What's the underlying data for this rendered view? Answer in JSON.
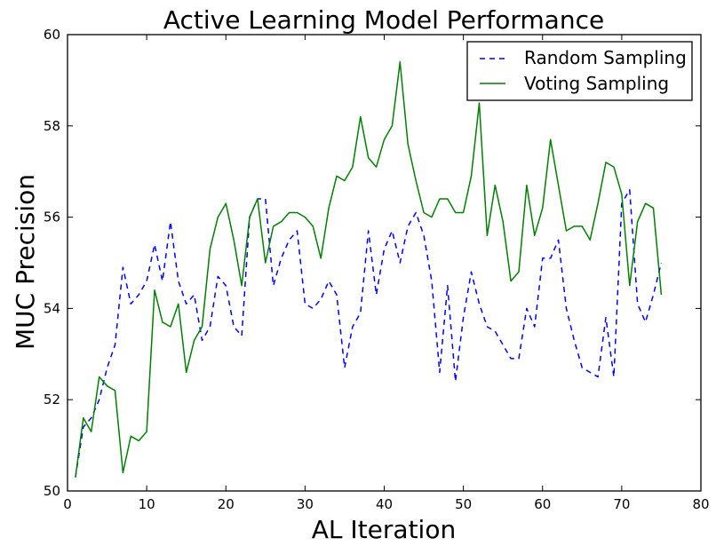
{
  "chart_data": {
    "type": "line",
    "title": "Active Learning Model Performance",
    "xlabel": "AL Iteration",
    "ylabel": "MUC Precision",
    "xlim": [
      0,
      80
    ],
    "ylim": [
      50,
      60
    ],
    "xticks": [
      0,
      10,
      20,
      30,
      40,
      50,
      60,
      70,
      80
    ],
    "yticks": [
      50,
      52,
      54,
      56,
      58,
      60
    ],
    "grid": false,
    "legend": "top-right",
    "x": [
      1,
      2,
      3,
      4,
      5,
      6,
      7,
      8,
      9,
      10,
      11,
      12,
      13,
      14,
      15,
      16,
      17,
      18,
      19,
      20,
      21,
      22,
      23,
      24,
      25,
      26,
      27,
      28,
      29,
      30,
      31,
      32,
      33,
      34,
      35,
      36,
      37,
      38,
      39,
      40,
      41,
      42,
      43,
      44,
      45,
      46,
      47,
      48,
      49,
      50,
      51,
      52,
      53,
      54,
      55,
      56,
      57,
      58,
      59,
      60,
      61,
      62,
      63,
      64,
      65,
      66,
      67,
      68,
      69,
      70,
      71,
      72,
      73,
      74,
      75
    ],
    "series": [
      {
        "name": "Random Sampling",
        "color": "#0000ff",
        "style": "dashed",
        "values": [
          50.3,
          51.4,
          51.6,
          52.0,
          52.7,
          53.2,
          54.9,
          54.1,
          54.3,
          54.6,
          55.4,
          54.6,
          55.9,
          54.6,
          54.1,
          54.3,
          53.3,
          53.6,
          54.7,
          54.5,
          53.6,
          53.4,
          56.0,
          56.4,
          56.4,
          54.5,
          55.1,
          55.5,
          55.7,
          54.1,
          54.0,
          54.2,
          54.6,
          54.3,
          52.7,
          53.6,
          53.9,
          55.7,
          54.3,
          55.3,
          55.7,
          55.0,
          55.8,
          56.1,
          55.6,
          54.6,
          52.6,
          54.5,
          52.4,
          53.8,
          54.8,
          54.1,
          53.6,
          53.5,
          53.2,
          52.9,
          52.9,
          54.0,
          53.6,
          55.1,
          55.1,
          55.5,
          54.0,
          53.3,
          52.7,
          52.6,
          52.5,
          53.8,
          52.5,
          56.3,
          56.6,
          54.1,
          53.7,
          54.3,
          55.0
        ]
      },
      {
        "name": "Voting Sampling",
        "color": "#008000",
        "style": "solid",
        "values": [
          50.3,
          51.6,
          51.3,
          52.5,
          52.3,
          52.2,
          50.4,
          51.2,
          51.1,
          51.3,
          54.4,
          53.7,
          53.6,
          54.1,
          52.6,
          53.3,
          53.6,
          55.3,
          56.0,
          56.3,
          55.5,
          54.5,
          56.0,
          56.4,
          55.0,
          55.8,
          55.9,
          56.1,
          56.1,
          56.0,
          55.8,
          55.1,
          56.2,
          56.9,
          56.8,
          57.1,
          58.2,
          57.3,
          57.1,
          57.7,
          58.0,
          59.4,
          57.6,
          56.8,
          56.1,
          56.0,
          56.4,
          56.4,
          56.1,
          56.1,
          56.9,
          58.5,
          55.6,
          56.7,
          55.9,
          54.6,
          54.8,
          56.7,
          55.6,
          56.2,
          57.7,
          56.7,
          55.7,
          55.8,
          55.8,
          55.5,
          56.3,
          57.2,
          57.1,
          56.5,
          54.5,
          55.9,
          56.3,
          56.2,
          54.3
        ]
      }
    ]
  }
}
